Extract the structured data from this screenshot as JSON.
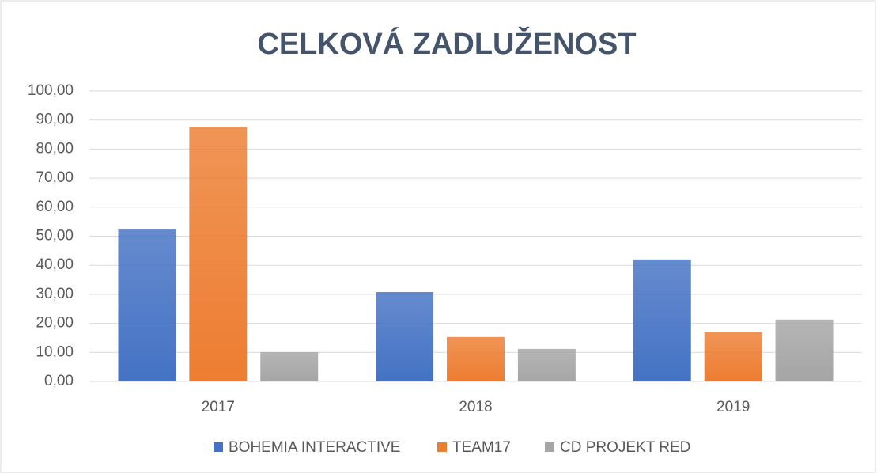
{
  "chart_data": {
    "type": "bar",
    "title": "CELKOVÁ ZADLUŽENOST",
    "categories": [
      "2017",
      "2018",
      "2019"
    ],
    "series": [
      {
        "name": "BOHEMIA INTERACTIVE",
        "color": "#4472c4",
        "values": [
          52.3,
          30.8,
          42.0
        ]
      },
      {
        "name": "TEAM17",
        "color": "#ed7d31",
        "values": [
          87.7,
          15.3,
          16.9
        ]
      },
      {
        "name": "CD PROJEKT RED",
        "color": "#a5a5a5",
        "values": [
          10.1,
          11.2,
          21.3
        ]
      }
    ],
    "ylim": [
      0,
      100
    ],
    "yticks": [
      {
        "value": 0,
        "label": "0,00"
      },
      {
        "value": 10,
        "label": "10,00"
      },
      {
        "value": 20,
        "label": "20,00"
      },
      {
        "value": 30,
        "label": "30,00"
      },
      {
        "value": 40,
        "label": "40,00"
      },
      {
        "value": 50,
        "label": "50,00"
      },
      {
        "value": 60,
        "label": "60,00"
      },
      {
        "value": 70,
        "label": "70,00"
      },
      {
        "value": 80,
        "label": "80,00"
      },
      {
        "value": 90,
        "label": "90,00"
      },
      {
        "value": 100,
        "label": "100,00"
      }
    ],
    "grid": true,
    "legend": "bottom"
  }
}
